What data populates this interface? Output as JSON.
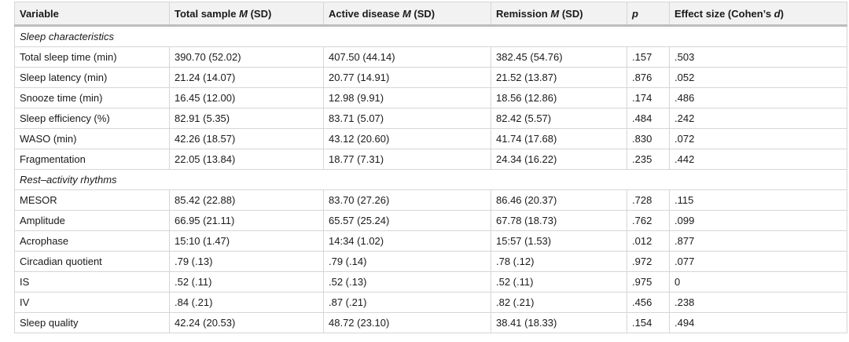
{
  "table": {
    "headers": [
      {
        "pre": "Variable",
        "em": "",
        "post": ""
      },
      {
        "pre": "Total sample ",
        "em": "M",
        "post": " (SD)"
      },
      {
        "pre": "Active disease ",
        "em": "M",
        "post": " (SD)"
      },
      {
        "pre": "Remission ",
        "em": "M",
        "post": " (SD)"
      },
      {
        "pre": "",
        "em": "p",
        "post": ""
      },
      {
        "pre": "Effect size (Cohen’s ",
        "em": "d",
        "post": ")"
      }
    ],
    "sections": [
      {
        "title": "Sleep characteristics",
        "rows": [
          [
            "Total sleep time (min)",
            "390.70 (52.02)",
            "407.50 (44.14)",
            "382.45 (54.76)",
            ".157",
            ".503"
          ],
          [
            "Sleep latency (min)",
            "21.24 (14.07)",
            "20.77 (14.91)",
            "21.52 (13.87)",
            ".876",
            ".052"
          ],
          [
            "Snooze time (min)",
            "16.45 (12.00)",
            "12.98 (9.91)",
            "18.56 (12.86)",
            ".174",
            ".486"
          ],
          [
            "Sleep efficiency (%)",
            "82.91 (5.35)",
            "83.71 (5.07)",
            "82.42 (5.57)",
            ".484",
            ".242"
          ],
          [
            "WASO (min)",
            "42.26 (18.57)",
            "43.12 (20.60)",
            "41.74 (17.68)",
            ".830",
            ".072"
          ],
          [
            "Fragmentation",
            "22.05 (13.84)",
            "18.77 (7.31)",
            "24.34 (16.22)",
            ".235",
            ".442"
          ]
        ]
      },
      {
        "title": "Rest–activity rhythms",
        "rows": [
          [
            "MESOR",
            "85.42 (22.88)",
            "83.70 (27.26)",
            "86.46 (20.37)",
            ".728",
            ".115"
          ],
          [
            "Amplitude",
            "66.95 (21.11)",
            "65.57 (25.24)",
            "67.78 (18.73)",
            ".762",
            ".099"
          ],
          [
            "Acrophase",
            "15:10 (1.47)",
            "14:34 (1.02)",
            "15:57 (1.53)",
            ".012",
            ".877"
          ],
          [
            "Circadian quotient",
            ".79 (.13)",
            ".79 (.14)",
            ".78 (.12)",
            ".972",
            ".077"
          ],
          [
            "IS",
            ".52 (.11)",
            ".52 (.13)",
            ".52 (.11)",
            ".975",
            "0"
          ],
          [
            "IV",
            ".84 (.21)",
            ".87 (.21)",
            ".82 (.21)",
            ".456",
            ".238"
          ],
          [
            "Sleep quality",
            "42.24 (20.53)",
            "48.72 (23.10)",
            "38.41 (18.33)",
            ".154",
            ".494"
          ]
        ]
      }
    ]
  }
}
